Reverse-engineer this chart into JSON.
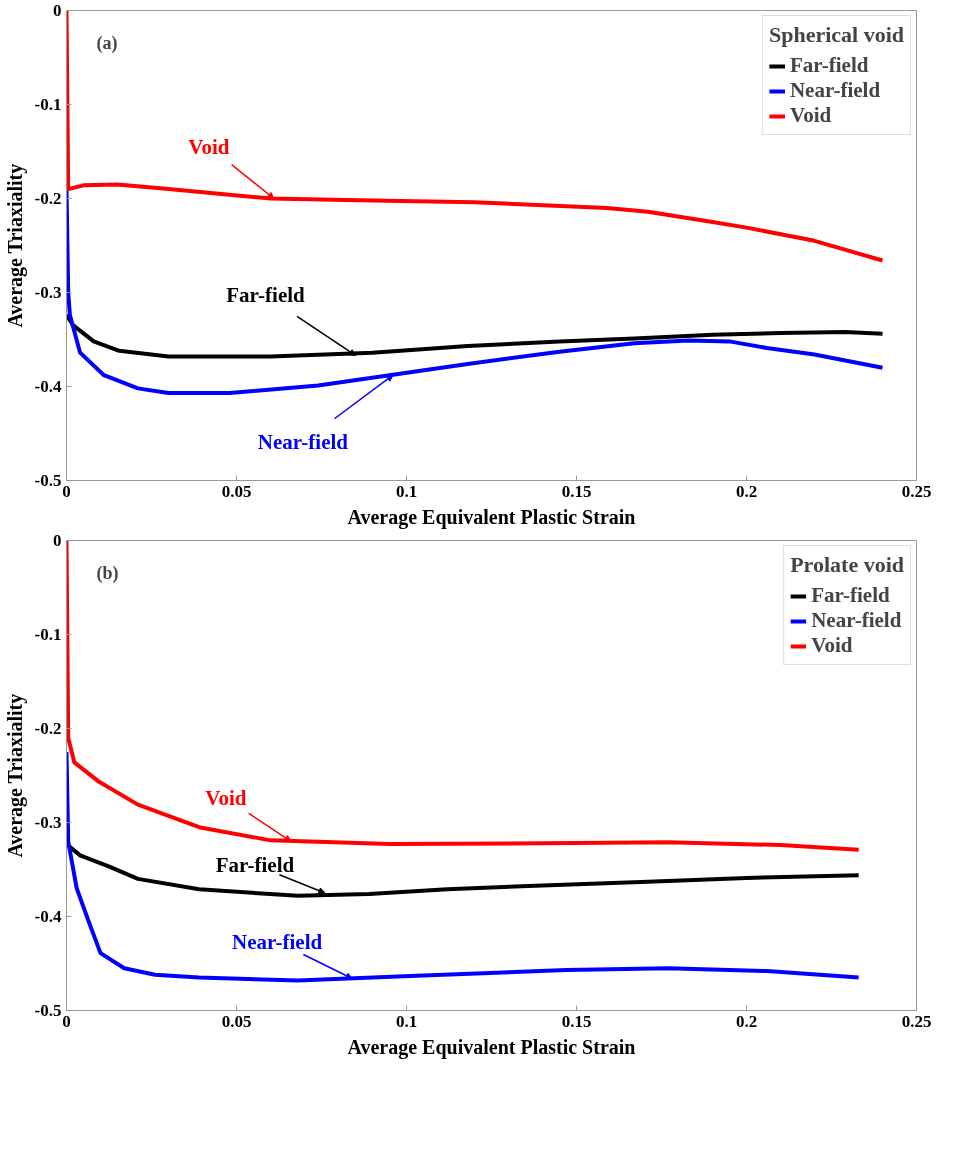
{
  "chart_data": [
    {
      "type": "line",
      "xlabel": "Average Equivalent Plastic Strain",
      "ylabel": "Average Triaxiality",
      "legend_title": "Spherical void",
      "legend": "top right",
      "xlim": [
        0,
        0.25
      ],
      "ylim": [
        -0.5,
        0
      ],
      "xticks": [
        0,
        0.05,
        0.1,
        0.15,
        0.2,
        0.25
      ],
      "yticks": [
        -0.5,
        -0.4,
        -0.3,
        -0.2,
        -0.1,
        0
      ],
      "grid": false,
      "marker": "none",
      "line_style": "solid",
      "series": [
        {
          "name": "Far-field",
          "color": "#000000",
          "x": [
            0,
            0.002,
            0.008,
            0.0155,
            0.03,
            0.06,
            0.09,
            0.118,
            0.145,
            0.167,
            0.19,
            0.21,
            0.229,
            0.24
          ],
          "values": [
            -0.324,
            -0.335,
            -0.352,
            -0.362,
            -0.368,
            -0.368,
            -0.364,
            -0.357,
            -0.352,
            -0.349,
            -0.345,
            -0.343,
            -0.342,
            -0.344
          ]
        },
        {
          "name": "Near-field",
          "color": "#0000ff",
          "x": [
            0,
            0.0005,
            0.001,
            0.004,
            0.011,
            0.021,
            0.03,
            0.048,
            0.074,
            0.095,
            0.118,
            0.145,
            0.167,
            0.183,
            0.195,
            0.206,
            0.22,
            0.24
          ],
          "values": [
            -0.19,
            -0.3,
            -0.324,
            -0.364,
            -0.388,
            -0.402,
            -0.407,
            -0.407,
            -0.399,
            -0.388,
            -0.376,
            -0.363,
            -0.354,
            -0.351,
            -0.352,
            -0.359,
            -0.366,
            -0.38
          ]
        },
        {
          "name": "Void",
          "color": "#ff0000",
          "x": [
            0,
            0.0005,
            0.005,
            0.015,
            0.03,
            0.06,
            0.09,
            0.12,
            0.159,
            0.171,
            0.19,
            0.2,
            0.22,
            0.24
          ],
          "values": [
            0,
            -0.19,
            -0.186,
            -0.185,
            -0.19,
            -0.2,
            -0.202,
            -0.204,
            -0.21,
            -0.214,
            -0.225,
            -0.231,
            -0.245,
            -0.266
          ]
        }
      ],
      "annotations": [
        "(a)",
        {
          "text": "Far-field",
          "x": 0.085,
          "y": -0.367
        },
        {
          "text": "Near-field",
          "x": 0.096,
          "y": -0.388
        },
        {
          "text": "Void",
          "x": 0.061,
          "y": -0.2
        }
      ]
    },
    {
      "type": "line",
      "xlabel": "Average Equivalent Plastic Strain",
      "ylabel": "Average Triaxiality",
      "legend_title": "Prolate void",
      "legend": "top right",
      "xlim": [
        0,
        0.25
      ],
      "ylim": [
        -0.5,
        0
      ],
      "xticks": [
        0,
        0.05,
        0.1,
        0.15,
        0.2,
        0.25
      ],
      "yticks": [
        -0.5,
        -0.4,
        -0.3,
        -0.2,
        -0.1,
        0
      ],
      "grid": false,
      "marker": "none",
      "line_style": "solid",
      "series": [
        {
          "name": "Far-field",
          "color": "#000000",
          "x": [
            0,
            0.004,
            0.0126,
            0.021,
            0.039,
            0.068,
            0.089,
            0.112,
            0.14,
            0.171,
            0.2,
            0.233
          ],
          "values": [
            -0.323,
            -0.335,
            -0.347,
            -0.36,
            -0.371,
            -0.378,
            -0.376,
            -0.371,
            -0.367,
            -0.363,
            -0.359,
            -0.356
          ]
        },
        {
          "name": "Near-field",
          "color": "#0000ff",
          "x": [
            0,
            0.0005,
            0.003,
            0.0067,
            0.01,
            0.017,
            0.026,
            0.039,
            0.068,
            0.103,
            0.147,
            0.177,
            0.206,
            0.233
          ],
          "values": [
            -0.225,
            -0.32,
            -0.37,
            -0.407,
            -0.439,
            -0.455,
            -0.462,
            -0.465,
            -0.468,
            -0.463,
            -0.457,
            -0.455,
            -0.458,
            -0.465
          ]
        },
        {
          "name": "Void",
          "color": "#ff0000",
          "x": [
            0,
            0.0005,
            0.0023,
            0.0097,
            0.021,
            0.039,
            0.06,
            0.095,
            0.14,
            0.177,
            0.21,
            0.233
          ],
          "values": [
            0,
            -0.21,
            -0.236,
            -0.257,
            -0.281,
            -0.305,
            -0.319,
            -0.323,
            -0.322,
            -0.321,
            -0.324,
            -0.329
          ]
        }
      ],
      "annotations": [
        "(b)",
        {
          "text": "Far-field",
          "x": 0.076,
          "y": -0.375
        },
        {
          "text": "Near-field",
          "x": 0.084,
          "y": -0.466
        },
        {
          "text": "Void",
          "x": 0.066,
          "y": -0.32
        }
      ]
    }
  ]
}
